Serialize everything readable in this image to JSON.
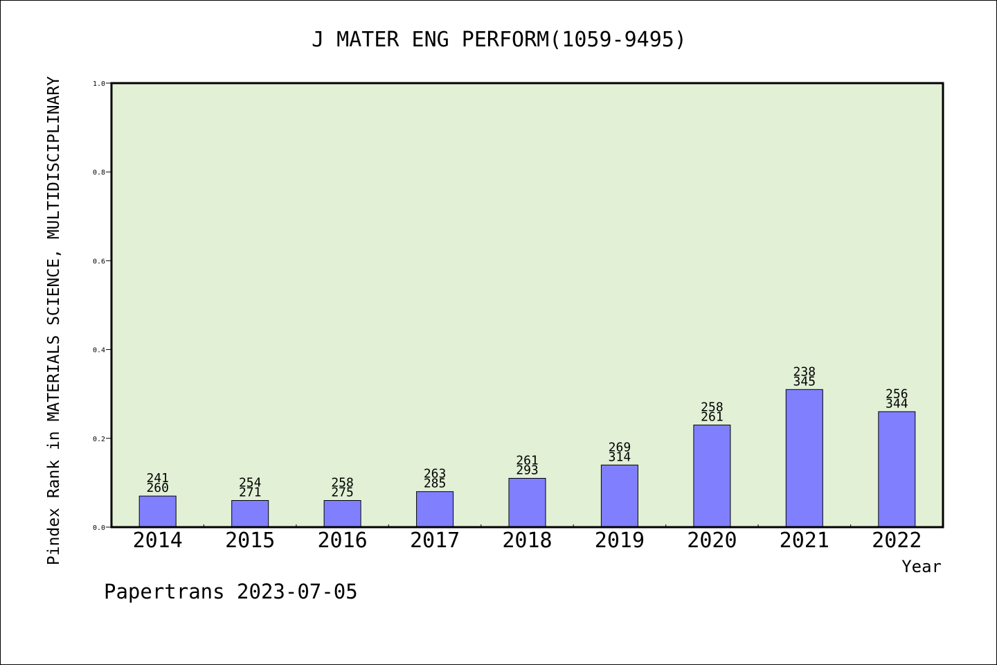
{
  "chart_data": {
    "type": "bar",
    "title": "J MATER ENG PERFORM(1059-9495)",
    "xlabel": "Year",
    "ylabel": "Pindex Rank in MATERIALS SCIENCE, MULTIDISCIPLINARY",
    "ylim": [
      0,
      1.0
    ],
    "yticks": [
      "0.0",
      "0.2",
      "0.4",
      "0.6",
      "0.8",
      "1.0"
    ],
    "categories": [
      "2014",
      "2015",
      "2016",
      "2017",
      "2018",
      "2019",
      "2020",
      "2021",
      "2022"
    ],
    "values": [
      0.07,
      0.06,
      0.06,
      0.08,
      0.11,
      0.14,
      0.23,
      0.31,
      0.26
    ],
    "labels_top": [
      "241",
      "254",
      "258",
      "263",
      "261",
      "269",
      "258",
      "238",
      "256"
    ],
    "labels_bottom": [
      "260",
      "271",
      "275",
      "285",
      "293",
      "314",
      "261",
      "345",
      "344"
    ],
    "bar_color": "#8080ff",
    "plot_background": "#e2f0d6",
    "grid": false,
    "legend": "none"
  },
  "footer": {
    "credit": "Papertrans 2023-07-05"
  }
}
